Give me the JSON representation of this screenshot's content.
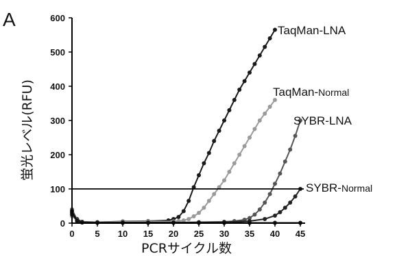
{
  "panel_label": "A",
  "chart_data": {
    "type": "line",
    "xlabel": "PCRサイクル数",
    "ylabel": "蛍光レベル(RFU)",
    "xlim": [
      0,
      45
    ],
    "ylim": [
      0,
      600
    ],
    "xticks": [
      0,
      5,
      10,
      15,
      20,
      25,
      30,
      35,
      40,
      45
    ],
    "yticks": [
      0,
      100,
      200,
      300,
      400,
      500,
      600
    ],
    "threshold": 100,
    "series": [
      {
        "name_parts": [
          "TaqMan-LNA",
          ""
        ],
        "color": "#1a1a1a",
        "x": [
          0,
          1,
          2,
          5,
          10,
          15,
          19,
          20,
          21,
          22,
          23,
          24,
          25,
          26,
          27,
          28,
          29,
          30,
          31,
          32,
          33,
          34,
          35,
          36,
          37,
          38,
          39,
          40
        ],
        "y": [
          30,
          12,
          4,
          3,
          5,
          6,
          8,
          12,
          18,
          35,
          65,
          105,
          140,
          175,
          205,
          240,
          270,
          300,
          330,
          360,
          390,
          415,
          440,
          465,
          490,
          515,
          540,
          565
        ]
      },
      {
        "name_parts": [
          "TaqMan-",
          "Normal"
        ],
        "color": "#9a9a9a",
        "x": [
          0,
          1,
          2,
          5,
          10,
          15,
          20,
          21,
          22,
          23,
          24,
          25,
          26,
          27,
          28,
          29,
          30,
          31,
          32,
          33,
          34,
          35,
          36,
          37,
          38,
          39,
          40
        ],
        "y": [
          20,
          8,
          3,
          3,
          4,
          5,
          5,
          6,
          8,
          12,
          20,
          30,
          45,
          65,
          85,
          105,
          125,
          150,
          175,
          200,
          225,
          250,
          275,
          300,
          320,
          340,
          360
        ]
      },
      {
        "name_parts": [
          "SYBR-LNA",
          ""
        ],
        "color": "#555555",
        "x": [
          0,
          1,
          2,
          5,
          10,
          15,
          20,
          25,
          30,
          32,
          34,
          35,
          36,
          37,
          38,
          39,
          40,
          41,
          42,
          43,
          44,
          45
        ],
        "y": [
          40,
          10,
          3,
          2,
          2,
          2,
          2,
          3,
          4,
          6,
          10,
          15,
          25,
          40,
          60,
          85,
          115,
          145,
          180,
          215,
          255,
          300
        ]
      },
      {
        "name_parts": [
          "SYBR-",
          "Normal"
        ],
        "color": "#222222",
        "x": [
          0,
          1,
          2,
          5,
          10,
          15,
          20,
          25,
          30,
          35,
          38,
          40,
          41,
          42,
          43,
          44,
          45
        ],
        "y": [
          25,
          8,
          2,
          2,
          2,
          2,
          2,
          2,
          3,
          6,
          12,
          22,
          32,
          45,
          60,
          78,
          100
        ]
      },
      {
        "name_parts": [
          "",
          ""
        ],
        "color": "#111111",
        "x": [
          0,
          1,
          2,
          5,
          10,
          15,
          20,
          25,
          30,
          35,
          40,
          45
        ],
        "y": [
          35,
          6,
          2,
          1,
          1,
          1,
          1,
          1,
          1,
          1,
          1,
          1
        ]
      }
    ]
  }
}
